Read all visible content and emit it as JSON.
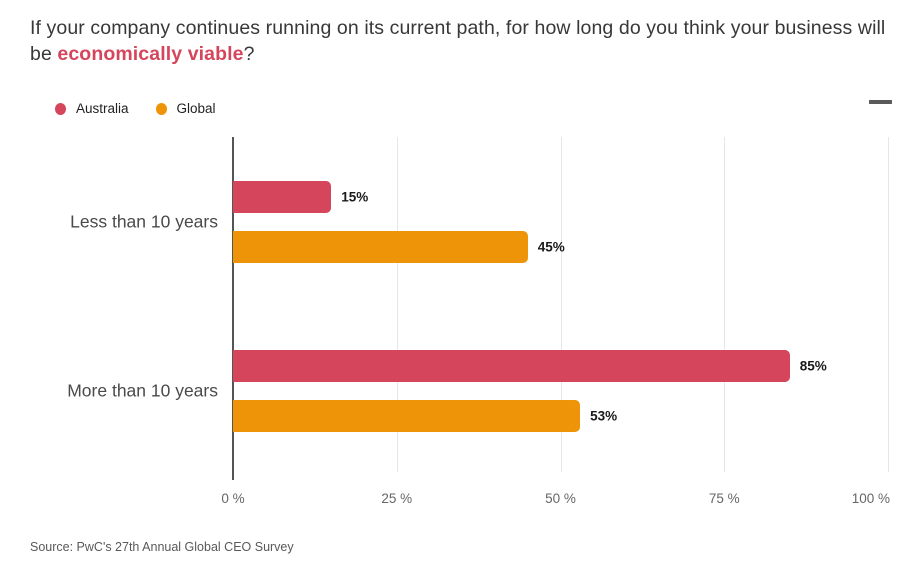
{
  "title": {
    "prefix": "If your company continues running on its current path, for how long do you think your business will be ",
    "highlight": "economically viable",
    "suffix": "?"
  },
  "legend": {
    "items": [
      {
        "label": "Australia",
        "color": "#d5455c"
      },
      {
        "label": "Global",
        "color": "#ee9408"
      }
    ]
  },
  "menu": {
    "icon": "hamburger-menu-icon"
  },
  "chart_data": {
    "type": "bar",
    "orientation": "horizontal",
    "title": "If your company continues running on its current path, for how long do you think your business will be economically viable?",
    "categories": [
      "Less than 10 years",
      "More than 10 years"
    ],
    "series": [
      {
        "name": "Australia",
        "color": "#d5455c",
        "values": [
          15,
          85
        ],
        "labels": [
          "15%",
          "85%"
        ]
      },
      {
        "name": "Global",
        "color": "#ee9408",
        "values": [
          45,
          53
        ],
        "labels": [
          "45%",
          "53%"
        ]
      }
    ],
    "xlim": [
      0,
      100
    ],
    "x_ticks": [
      {
        "value": 0,
        "label": "0 %"
      },
      {
        "value": 25,
        "label": "25 %"
      },
      {
        "value": 50,
        "label": "50 %"
      },
      {
        "value": 75,
        "label": "75 %"
      },
      {
        "value": 100,
        "label": "100 %"
      }
    ],
    "grid": true,
    "legend_position": "top-left",
    "value_label_format": "percent"
  },
  "footer": {
    "source": "Source: PwC's 27th Annual Global CEO Survey"
  },
  "colors": {
    "australia": "#d5455c",
    "global": "#ee9408",
    "title_highlight": "#d5455c",
    "gridline": "#e6e6e6",
    "axis": "#555555"
  }
}
